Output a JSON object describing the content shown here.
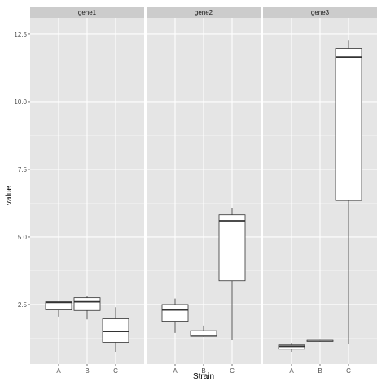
{
  "chart_data": {
    "type": "boxplot",
    "xlabel": "Strain",
    "ylabel": "value",
    "ylim": [
      0.3,
      13.1
    ],
    "yticks": [
      2.5,
      5.0,
      7.5,
      10.0,
      12.5
    ],
    "ytick_labels": [
      "2.5",
      "5.0",
      "7.5",
      "10.0",
      "12.5"
    ],
    "categories": [
      "A",
      "B",
      "C"
    ],
    "grid": true,
    "colors": {
      "panel": "#e5e5e5",
      "strip": "#cccccc",
      "box_fill": "#ffffff",
      "box_line": "#333333",
      "grid": "#ffffff"
    },
    "facets": [
      {
        "label": "gene1",
        "boxes": [
          {
            "category": "A",
            "min": 2.05,
            "q1": 2.3,
            "median": 2.58,
            "q3": 2.6,
            "max": 2.6
          },
          {
            "category": "B",
            "min": 1.95,
            "q1": 2.28,
            "median": 2.6,
            "q3": 2.75,
            "max": 2.8
          },
          {
            "category": "C",
            "min": 0.75,
            "q1": 1.1,
            "median": 1.5,
            "q3": 1.97,
            "max": 2.4
          }
        ]
      },
      {
        "label": "gene2",
        "boxes": [
          {
            "category": "A",
            "min": 1.45,
            "q1": 1.88,
            "median": 2.3,
            "q3": 2.5,
            "max": 2.72
          },
          {
            "category": "B",
            "min": 1.3,
            "q1": 1.32,
            "median": 1.35,
            "q3": 1.53,
            "max": 1.72
          },
          {
            "category": "C",
            "min": 1.2,
            "q1": 3.38,
            "median": 5.6,
            "q3": 5.82,
            "max": 6.08
          }
        ]
      },
      {
        "label": "gene3",
        "boxes": [
          {
            "category": "A",
            "min": 0.75,
            "q1": 0.85,
            "median": 0.95,
            "q3": 1.0,
            "max": 1.08
          },
          {
            "category": "B",
            "min": 1.12,
            "q1": 1.13,
            "median": 1.18,
            "q3": 1.2,
            "max": 1.22
          },
          {
            "category": "C",
            "min": 1.05,
            "q1": 6.35,
            "median": 11.65,
            "q3": 11.97,
            "max": 12.28
          }
        ]
      }
    ]
  }
}
